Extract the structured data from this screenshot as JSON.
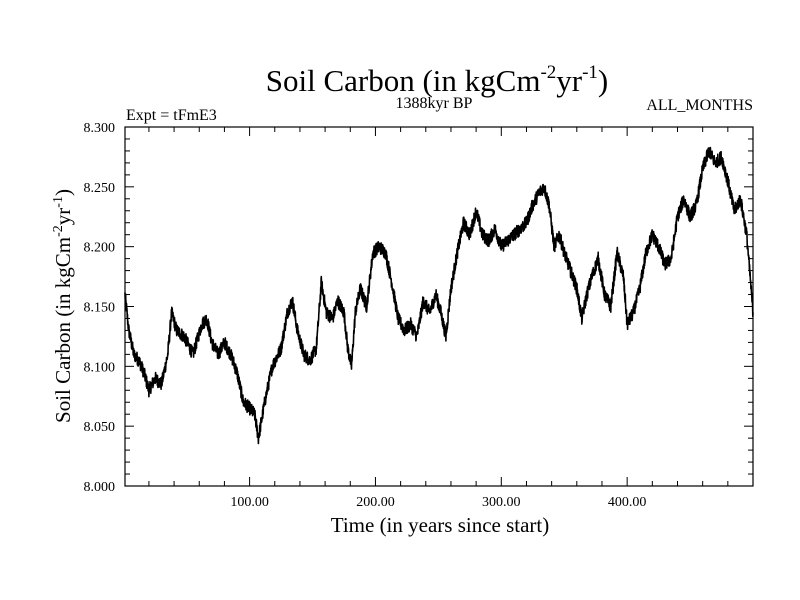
{
  "chart_data": {
    "type": "line",
    "title_main": "Soil Carbon (in kgCm",
    "title_sup1": "-2",
    "title_mid": "yr",
    "title_sup2": "-1",
    "title_end": ")",
    "subtitle_left": "Expt = tFmE3",
    "subtitle_center": "1388kyr BP",
    "subtitle_right": "ALL_MONTHS",
    "xlabel": "Time (in years since start)",
    "ylabel_main": "Soil Carbon (in kgCm",
    "ylabel_sup1": "-2",
    "ylabel_mid": "yr",
    "ylabel_sup2": "-1",
    "ylabel_end": ")",
    "xlim": [
      1,
      500
    ],
    "ylim": [
      8.0,
      8.3
    ],
    "xticks": [
      100,
      200,
      300,
      400
    ],
    "xtick_labels": [
      "100.00",
      "200.00",
      "300.00",
      "400.00"
    ],
    "yticks": [
      8.0,
      8.05,
      8.1,
      8.15,
      8.2,
      8.25,
      8.3
    ],
    "ytick_labels": [
      "8.000",
      "8.050",
      "8.100",
      "8.150",
      "8.200",
      "8.250",
      "8.300"
    ],
    "series": [
      {
        "name": "Soil Carbon",
        "color": "#000000",
        "x": [
          1,
          4,
          8,
          12,
          16,
          20,
          25,
          30,
          35,
          38,
          42,
          48,
          55,
          62,
          66,
          70,
          75,
          80,
          85,
          90,
          95,
          100,
          104,
          107,
          112,
          118,
          125,
          130,
          134,
          138,
          143,
          148,
          153,
          157,
          161,
          166,
          170,
          175,
          178,
          181,
          184,
          188,
          193,
          198,
          203,
          208,
          213,
          218,
          223,
          228,
          233,
          238,
          243,
          248,
          252,
          256,
          260,
          265,
          270,
          275,
          280,
          285,
          290,
          295,
          300,
          305,
          310,
          315,
          320,
          325,
          330,
          334,
          338,
          342,
          346,
          350,
          355,
          360,
          364,
          368,
          372,
          377,
          382,
          387,
          392,
          397,
          400,
          405,
          410,
          415,
          420,
          425,
          430,
          435,
          440,
          445,
          450,
          455,
          460,
          465,
          470,
          475,
          480,
          485,
          490,
          495,
          500
        ],
        "y": [
          8.16,
          8.13,
          8.11,
          8.105,
          8.095,
          8.08,
          8.09,
          8.085,
          8.11,
          8.145,
          8.13,
          8.125,
          8.11,
          8.135,
          8.14,
          8.12,
          8.11,
          8.12,
          8.11,
          8.095,
          8.07,
          8.065,
          8.06,
          8.04,
          8.07,
          8.1,
          8.115,
          8.145,
          8.155,
          8.13,
          8.11,
          8.105,
          8.115,
          8.17,
          8.145,
          8.14,
          8.155,
          8.145,
          8.115,
          8.1,
          8.145,
          8.165,
          8.15,
          8.195,
          8.2,
          8.195,
          8.17,
          8.14,
          8.13,
          8.135,
          8.125,
          8.155,
          8.145,
          8.16,
          8.145,
          8.125,
          8.165,
          8.195,
          8.22,
          8.21,
          8.23,
          8.21,
          8.205,
          8.215,
          8.2,
          8.205,
          8.21,
          8.215,
          8.22,
          8.235,
          8.245,
          8.25,
          8.235,
          8.2,
          8.21,
          8.195,
          8.18,
          8.165,
          8.14,
          8.16,
          8.175,
          8.19,
          8.16,
          8.15,
          8.195,
          8.175,
          8.135,
          8.145,
          8.165,
          8.195,
          8.21,
          8.2,
          8.185,
          8.19,
          8.225,
          8.24,
          8.225,
          8.235,
          8.265,
          8.28,
          8.27,
          8.275,
          8.255,
          8.23,
          8.24,
          8.21,
          8.145
        ]
      }
    ]
  }
}
